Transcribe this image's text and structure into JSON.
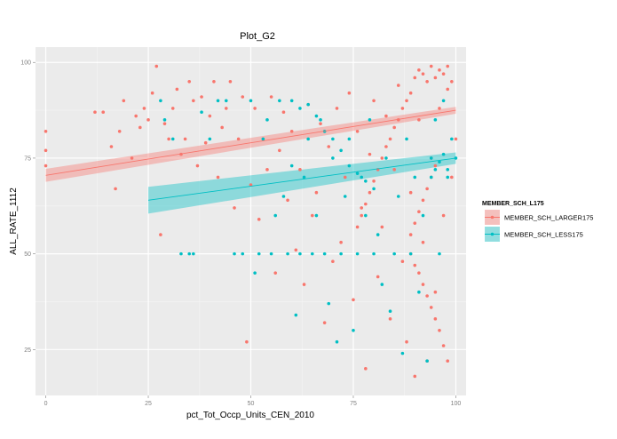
{
  "chart_data": {
    "type": "scatter",
    "title": "Plot_G2",
    "xlabel": "pct_Tot_Occp_Units_CEN_2010",
    "ylabel": "ALL_RATE_1112",
    "xlim": [
      -2.5,
      102.5
    ],
    "ylim": [
      13,
      104
    ],
    "x_ticks": [
      0,
      25,
      50,
      75,
      100
    ],
    "y_ticks": [
      25,
      50,
      75,
      100
    ],
    "grid": true,
    "legend": {
      "title": "MEMBER_SCH_L175",
      "position": "right"
    },
    "series": [
      {
        "name": "MEMBER_SCH_LARGER175",
        "color": "#F8766D",
        "fit": {
          "x": [
            0,
            100
          ],
          "y": [
            70.5,
            87.5
          ],
          "se_lower": [
            68.8,
            86.6
          ],
          "se_upper": [
            72.2,
            88.4
          ]
        },
        "points": [
          [
            0,
            82
          ],
          [
            0,
            77
          ],
          [
            0,
            73
          ],
          [
            12,
            87
          ],
          [
            14,
            87
          ],
          [
            16,
            78
          ],
          [
            17,
            67
          ],
          [
            18,
            82
          ],
          [
            19,
            90
          ],
          [
            21,
            75
          ],
          [
            22,
            86
          ],
          [
            23,
            83
          ],
          [
            24,
            88
          ],
          [
            25,
            85
          ],
          [
            26,
            92
          ],
          [
            27,
            99
          ],
          [
            28,
            55
          ],
          [
            29,
            84
          ],
          [
            30,
            80
          ],
          [
            31,
            88
          ],
          [
            32,
            93
          ],
          [
            33,
            76
          ],
          [
            34,
            80
          ],
          [
            35,
            95
          ],
          [
            36,
            90
          ],
          [
            37,
            73
          ],
          [
            38,
            91
          ],
          [
            39,
            79
          ],
          [
            40,
            86
          ],
          [
            41,
            95
          ],
          [
            42,
            70
          ],
          [
            43,
            83
          ],
          [
            44,
            88
          ],
          [
            45,
            95
          ],
          [
            46,
            62
          ],
          [
            47,
            80
          ],
          [
            48,
            91
          ],
          [
            49,
            27
          ],
          [
            50,
            68
          ],
          [
            51,
            88
          ],
          [
            52,
            59
          ],
          [
            53,
            80
          ],
          [
            54,
            72
          ],
          [
            55,
            91
          ],
          [
            56,
            45
          ],
          [
            57,
            77
          ],
          [
            58,
            87
          ],
          [
            59,
            64
          ],
          [
            60,
            82
          ],
          [
            61,
            51
          ],
          [
            62,
            72
          ],
          [
            63,
            42
          ],
          [
            64,
            89
          ],
          [
            65,
            60
          ],
          [
            66,
            66
          ],
          [
            67,
            84
          ],
          [
            68,
            32
          ],
          [
            69,
            78
          ],
          [
            70,
            48
          ],
          [
            71,
            88
          ],
          [
            72,
            53
          ],
          [
            73,
            70
          ],
          [
            74,
            92
          ],
          [
            75,
            38
          ],
          [
            76,
            82
          ],
          [
            77,
            62
          ],
          [
            78,
            20
          ],
          [
            79,
            76
          ],
          [
            80,
            90
          ],
          [
            81,
            44
          ],
          [
            82,
            57
          ],
          [
            83,
            86
          ],
          [
            84,
            33
          ],
          [
            85,
            72
          ],
          [
            86,
            94
          ],
          [
            87,
            48
          ],
          [
            88,
            27
          ],
          [
            89,
            66
          ],
          [
            90,
            18
          ],
          [
            91,
            85
          ],
          [
            92,
            53
          ],
          [
            93,
            22
          ],
          [
            94,
            75
          ],
          [
            95,
            40
          ],
          [
            96,
            88
          ],
          [
            97,
            60
          ],
          [
            98,
            93
          ],
          [
            99,
            70
          ],
          [
            100,
            80
          ],
          [
            90,
            96
          ],
          [
            91,
            98
          ],
          [
            92,
            97
          ],
          [
            93,
            95
          ],
          [
            94,
            99
          ],
          [
            95,
            96
          ],
          [
            96,
            98
          ],
          [
            97,
            97
          ],
          [
            98,
            99
          ],
          [
            99,
            95
          ],
          [
            89,
            92
          ],
          [
            88,
            90
          ],
          [
            87,
            88
          ],
          [
            86,
            85
          ],
          [
            85,
            83
          ],
          [
            84,
            80
          ],
          [
            83,
            78
          ],
          [
            82,
            75
          ],
          [
            81,
            72
          ],
          [
            80,
            69
          ],
          [
            79,
            66
          ],
          [
            78,
            63
          ],
          [
            77,
            60
          ],
          [
            76,
            57
          ],
          [
            89,
            50
          ],
          [
            90,
            47
          ],
          [
            91,
            45
          ],
          [
            92,
            42
          ],
          [
            93,
            39
          ],
          [
            94,
            36
          ],
          [
            95,
            33
          ],
          [
            96,
            30
          ],
          [
            97,
            26
          ],
          [
            98,
            22
          ],
          [
            89,
            55
          ],
          [
            90,
            58
          ],
          [
            91,
            61
          ],
          [
            92,
            64
          ],
          [
            93,
            67
          ],
          [
            94,
            70
          ],
          [
            95,
            73
          ]
        ]
      },
      {
        "name": "MEMBER_SCH_LESS175",
        "color": "#00BFC4",
        "fit": {
          "x": [
            25,
            100
          ],
          "y": [
            64,
            75
          ],
          "se_lower": [
            60.5,
            73.5
          ],
          "se_upper": [
            67.5,
            76.5
          ]
        },
        "points": [
          [
            28,
            90
          ],
          [
            29,
            85
          ],
          [
            31,
            80
          ],
          [
            33,
            50
          ],
          [
            35,
            50
          ],
          [
            36,
            50
          ],
          [
            38,
            87
          ],
          [
            40,
            80
          ],
          [
            42,
            90
          ],
          [
            44,
            90
          ],
          [
            46,
            50
          ],
          [
            48,
            50
          ],
          [
            50,
            90
          ],
          [
            51,
            45
          ],
          [
            52,
            50
          ],
          [
            53,
            80
          ],
          [
            54,
            85
          ],
          [
            55,
            50
          ],
          [
            56,
            60
          ],
          [
            57,
            90
          ],
          [
            58,
            65
          ],
          [
            59,
            50
          ],
          [
            60,
            73
          ],
          [
            61,
            34
          ],
          [
            62,
            50
          ],
          [
            63,
            70
          ],
          [
            64,
            80
          ],
          [
            65,
            50
          ],
          [
            66,
            60
          ],
          [
            67,
            85
          ],
          [
            68,
            50
          ],
          [
            69,
            37
          ],
          [
            70,
            75
          ],
          [
            71,
            27
          ],
          [
            72,
            50
          ],
          [
            73,
            65
          ],
          [
            74,
            80
          ],
          [
            75,
            30
          ],
          [
            76,
            50
          ],
          [
            77,
            70
          ],
          [
            78,
            60
          ],
          [
            79,
            85
          ],
          [
            80,
            50
          ],
          [
            81,
            55
          ],
          [
            82,
            42
          ],
          [
            83,
            75
          ],
          [
            84,
            35
          ],
          [
            85,
            50
          ],
          [
            86,
            65
          ],
          [
            87,
            24
          ],
          [
            88,
            80
          ],
          [
            89,
            50
          ],
          [
            90,
            70
          ],
          [
            91,
            40
          ],
          [
            92,
            60
          ],
          [
            93,
            22
          ],
          [
            94,
            75
          ],
          [
            95,
            85
          ],
          [
            96,
            50
          ],
          [
            97,
            90
          ],
          [
            98,
            72
          ],
          [
            99,
            80
          ],
          [
            100,
            75
          ],
          [
            94,
            70
          ],
          [
            95,
            72
          ],
          [
            96,
            74
          ],
          [
            97,
            76
          ],
          [
            98,
            70
          ],
          [
            60,
            90
          ],
          [
            62,
            88
          ],
          [
            64,
            89
          ],
          [
            66,
            86
          ],
          [
            68,
            82
          ],
          [
            70,
            80
          ],
          [
            72,
            77
          ],
          [
            74,
            73
          ],
          [
            76,
            71
          ],
          [
            78,
            69
          ],
          [
            80,
            67
          ]
        ]
      }
    ]
  }
}
